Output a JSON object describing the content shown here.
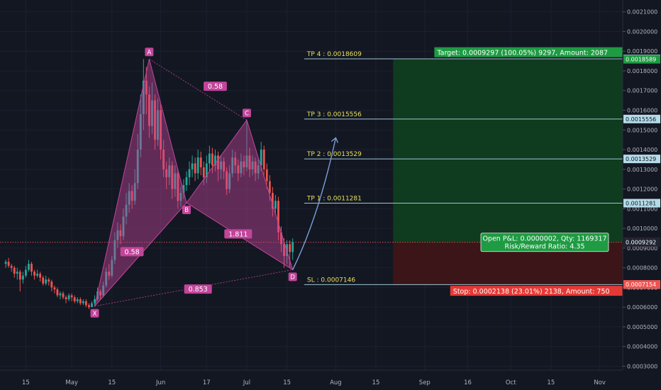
{
  "colors": {
    "background": "#131722",
    "bull": "#26a69a",
    "bear": "#ef5350",
    "pattern": "#c2459a",
    "tp_text": "#e8e05a",
    "profit_zone": "#0f3b1e",
    "loss_zone": "#3b1518",
    "arrow": "#7d9fd8"
  },
  "chart_data": {
    "type": "candlestick",
    "price_scale": {
      "min": 0.00028,
      "max": 0.00216
    },
    "y_ticks": [
      "0.0021000",
      "0.0020000",
      "0.0019000",
      "0.0018000",
      "0.0017000",
      "0.0016000",
      "0.0015000",
      "0.0014000",
      "0.0013000",
      "0.0012000",
      "0.0011000",
      "0.0010000",
      "0.0009000",
      "0.0008000",
      "0.0007000",
      "0.0006000",
      "0.0005000",
      "0.0004000",
      "0.0003000"
    ],
    "y_tick_values": [
      0.0021,
      0.002,
      0.0019,
      0.0018,
      0.0017,
      0.0016,
      0.0015,
      0.0014,
      0.0013,
      0.0012,
      0.0011,
      0.001,
      0.0009,
      0.0008,
      0.0007,
      0.0006,
      0.0005,
      0.0004,
      0.0003
    ],
    "x_ticks": [
      {
        "label": "15",
        "day": -16
      },
      {
        "label": "May",
        "day": 0
      },
      {
        "label": "15",
        "day": 14
      },
      {
        "label": "Jun",
        "day": 31
      },
      {
        "label": "17",
        "day": 47
      },
      {
        "label": "Jul",
        "day": 61
      },
      {
        "label": "15",
        "day": 75
      },
      {
        "label": "Aug",
        "day": 92
      },
      {
        "label": "15",
        "day": 106
      },
      {
        "label": "Sep",
        "day": 123
      },
      {
        "label": "16",
        "day": 138
      },
      {
        "label": "Oct",
        "day": 153
      },
      {
        "label": "15",
        "day": 167
      },
      {
        "label": "Nov",
        "day": 184
      }
    ],
    "x_range_days": [
      -25,
      192
    ],
    "candles": [
      [
        -23,
        0.00082,
        0.00083,
        0.00084,
        0.0008
      ],
      [
        -22,
        0.00083,
        0.00081,
        0.00085,
        0.0008
      ],
      [
        -21,
        0.00081,
        0.0008,
        0.00082,
        0.00078
      ],
      [
        -20,
        0.0008,
        0.00077,
        0.00081,
        0.00075
      ],
      [
        -19,
        0.00077,
        0.00078,
        0.0008,
        0.00074
      ],
      [
        -18,
        0.00078,
        0.00074,
        0.00079,
        0.00068
      ],
      [
        -17,
        0.00074,
        0.00076,
        0.00078,
        0.00072
      ],
      [
        -16,
        0.00076,
        0.00079,
        0.00081,
        0.00075
      ],
      [
        -15,
        0.00079,
        0.00082,
        0.00084,
        0.00078
      ],
      [
        -14,
        0.00082,
        0.00078,
        0.00083,
        0.00076
      ],
      [
        -13,
        0.00078,
        0.00076,
        0.00079,
        0.00074
      ],
      [
        -12,
        0.00076,
        0.00077,
        0.00079,
        0.00075
      ],
      [
        -11,
        0.00077,
        0.00075,
        0.00078,
        0.00073
      ],
      [
        -10,
        0.00075,
        0.00072,
        0.00076,
        0.00071
      ],
      [
        -9,
        0.00072,
        0.00074,
        0.00076,
        0.00071
      ],
      [
        -8,
        0.00074,
        0.00073,
        0.00075,
        0.00071
      ],
      [
        -7,
        0.00073,
        0.0007,
        0.00074,
        0.00068
      ],
      [
        -6,
        0.0007,
        0.00069,
        0.00071,
        0.00067
      ],
      [
        -5,
        0.00069,
        0.00066,
        0.0007,
        0.00065
      ],
      [
        -4,
        0.00066,
        0.00067,
        0.00068,
        0.00064
      ],
      [
        -3,
        0.00067,
        0.00065,
        0.00068,
        0.00064
      ],
      [
        -2,
        0.00065,
        0.00064,
        0.00066,
        0.00062
      ],
      [
        -1,
        0.00064,
        0.00066,
        0.00067,
        0.00063
      ],
      [
        0,
        0.00066,
        0.00065,
        0.00067,
        0.00063
      ],
      [
        1,
        0.00065,
        0.00063,
        0.00066,
        0.00062
      ],
      [
        2,
        0.00063,
        0.00064,
        0.00065,
        0.00062
      ],
      [
        3,
        0.00064,
        0.00062,
        0.00065,
        0.00061
      ],
      [
        4,
        0.00062,
        0.00063,
        0.00064,
        0.00061
      ],
      [
        5,
        0.00063,
        0.00061,
        0.00064,
        0.0006
      ],
      [
        6,
        0.00061,
        0.0006,
        0.00062,
        0.00059
      ],
      [
        7,
        0.0006,
        0.00062,
        0.00063,
        0.0006
      ],
      [
        8,
        0.00062,
        0.00064,
        0.00066,
        0.00061
      ],
      [
        9,
        0.00064,
        0.00068,
        0.0007,
        0.00063
      ],
      [
        10,
        0.00068,
        0.00066,
        0.00069,
        0.00064
      ],
      [
        11,
        0.00066,
        0.00071,
        0.00073,
        0.00065
      ],
      [
        12,
        0.00071,
        0.00078,
        0.0008,
        0.0007
      ],
      [
        13,
        0.00078,
        0.00076,
        0.00082,
        0.00074
      ],
      [
        14,
        0.00076,
        0.00084,
        0.00086,
        0.00075
      ],
      [
        15,
        0.00084,
        0.00094,
        0.00098,
        0.00082
      ],
      [
        16,
        0.00094,
        0.00099,
        0.00103,
        0.0009
      ],
      [
        17,
        0.00099,
        0.00096,
        0.00102,
        0.00092
      ],
      [
        18,
        0.00096,
        0.00106,
        0.0011,
        0.00094
      ],
      [
        19,
        0.00106,
        0.00112,
        0.00118,
        0.00102
      ],
      [
        20,
        0.00112,
        0.00119,
        0.00123,
        0.00108
      ],
      [
        21,
        0.00119,
        0.00114,
        0.00122,
        0.0011
      ],
      [
        22,
        0.00114,
        0.00123,
        0.0013,
        0.00112
      ],
      [
        23,
        0.00123,
        0.0014,
        0.00148,
        0.0012
      ],
      [
        24,
        0.0014,
        0.00158,
        0.00168,
        0.00136
      ],
      [
        25,
        0.00158,
        0.00175,
        0.00186,
        0.0015
      ],
      [
        26,
        0.00175,
        0.00168,
        0.00182,
        0.00158
      ],
      [
        27,
        0.00168,
        0.00152,
        0.00172,
        0.00146
      ],
      [
        28,
        0.00152,
        0.00165,
        0.00174,
        0.00148
      ],
      [
        29,
        0.00165,
        0.00145,
        0.00168,
        0.0014
      ],
      [
        30,
        0.00145,
        0.0016,
        0.00166,
        0.00142
      ],
      [
        31,
        0.0016,
        0.0014,
        0.00163,
        0.00135
      ],
      [
        32,
        0.0014,
        0.0013,
        0.00145,
        0.00126
      ],
      [
        33,
        0.0013,
        0.00126,
        0.00134,
        0.0012
      ],
      [
        34,
        0.00126,
        0.00132,
        0.00136,
        0.00122
      ],
      [
        35,
        0.00132,
        0.0012,
        0.00134,
        0.00115
      ],
      [
        36,
        0.0012,
        0.00128,
        0.00132,
        0.00116
      ],
      [
        37,
        0.00128,
        0.00114,
        0.0013,
        0.0011
      ],
      [
        38,
        0.00114,
        0.00118,
        0.00121,
        0.00111
      ],
      [
        39,
        0.00118,
        0.00122,
        0.00125,
        0.00115
      ],
      [
        40,
        0.00122,
        0.00126,
        0.00129,
        0.00119
      ],
      [
        41,
        0.00126,
        0.0013,
        0.00134,
        0.00122
      ],
      [
        42,
        0.0013,
        0.00133,
        0.00137,
        0.00126
      ],
      [
        43,
        0.00133,
        0.00128,
        0.00136,
        0.00124
      ],
      [
        44,
        0.00128,
        0.00136,
        0.0014,
        0.00125
      ],
      [
        45,
        0.00136,
        0.00131,
        0.00139,
        0.00127
      ],
      [
        46,
        0.00131,
        0.00126,
        0.00134,
        0.00122
      ],
      [
        47,
        0.00126,
        0.00133,
        0.00137,
        0.00123
      ],
      [
        48,
        0.00133,
        0.00138,
        0.00142,
        0.00129
      ],
      [
        49,
        0.00138,
        0.00132,
        0.00141,
        0.00128
      ],
      [
        50,
        0.00132,
        0.00137,
        0.0014,
        0.00129
      ],
      [
        51,
        0.00137,
        0.0013,
        0.00139,
        0.00124
      ],
      [
        52,
        0.0013,
        0.00134,
        0.00137,
        0.00125
      ],
      [
        53,
        0.00134,
        0.00129,
        0.00136,
        0.00125
      ],
      [
        54,
        0.00129,
        0.0012,
        0.00131,
        0.00117
      ],
      [
        55,
        0.0012,
        0.00128,
        0.00132,
        0.00118
      ],
      [
        56,
        0.00128,
        0.00136,
        0.0014,
        0.00126
      ],
      [
        57,
        0.00136,
        0.00132,
        0.00139,
        0.00128
      ],
      [
        58,
        0.00132,
        0.00128,
        0.00135,
        0.00124
      ],
      [
        59,
        0.00128,
        0.00134,
        0.00138,
        0.00126
      ],
      [
        60,
        0.00134,
        0.00131,
        0.00137,
        0.00127
      ],
      [
        61,
        0.00131,
        0.00137,
        0.00155,
        0.00129
      ],
      [
        62,
        0.00137,
        0.0013,
        0.00141,
        0.00126
      ],
      [
        63,
        0.0013,
        0.00134,
        0.00137,
        0.00127
      ],
      [
        64,
        0.00134,
        0.00128,
        0.00136,
        0.00124
      ],
      [
        65,
        0.00128,
        0.00132,
        0.00135,
        0.00125
      ],
      [
        66,
        0.00132,
        0.0014,
        0.00144,
        0.00129
      ],
      [
        67,
        0.0014,
        0.0013,
        0.00142,
        0.00126
      ],
      [
        68,
        0.0013,
        0.00124,
        0.00133,
        0.0012
      ],
      [
        69,
        0.00124,
        0.00118,
        0.00127,
        0.00114
      ],
      [
        70,
        0.00118,
        0.0011,
        0.00121,
        0.00106
      ],
      [
        71,
        0.0011,
        0.00114,
        0.00117,
        0.00107
      ],
      [
        72,
        0.00114,
        0.00098,
        0.00116,
        0.00094
      ],
      [
        73,
        0.00098,
        0.00092,
        0.00101,
        0.00088
      ],
      [
        74,
        0.00092,
        0.00086,
        0.00095,
        0.0008
      ],
      [
        75,
        0.00086,
        0.00092,
        0.00094,
        0.00082
      ],
      [
        76,
        0.00092,
        0.00088,
        0.00094,
        0.0008
      ],
      [
        77,
        0.00088,
        0.00093,
        0.00095,
        0.00084
      ]
    ],
    "pattern_points": [
      {
        "label": "X",
        "day": 8,
        "price": 0.000605
      },
      {
        "label": "A",
        "day": 27,
        "price": 0.00186
      },
      {
        "label": "B",
        "day": 40,
        "price": 0.00113
      },
      {
        "label": "C",
        "day": 61,
        "price": 0.00155
      },
      {
        "label": "D",
        "day": 77,
        "price": 0.00079
      }
    ],
    "ratios": [
      {
        "label": "0.58",
        "day": 50,
        "price": 0.00172
      },
      {
        "label": "0.58",
        "day": 21,
        "price": 0.00088
      },
      {
        "label": "1.811",
        "day": 58,
        "price": 0.00097
      },
      {
        "label": "0.853",
        "day": 44,
        "price": 0.00069
      }
    ],
    "projection_arrow": {
      "from_day": 77,
      "from_price": 0.00079,
      "to_day": 92,
      "to_price": 0.00146
    },
    "levels": [
      {
        "label": "TP 4 : 0.0018609",
        "price": 0.0018609,
        "badge": "0.0018609"
      },
      {
        "label": "TP 3 : 0.0015556",
        "price": 0.0015556,
        "badge": "0.0015556"
      },
      {
        "label": "TP 2 : 0.0013529",
        "price": 0.0013529,
        "badge": "0.0013529"
      },
      {
        "label": "TP 1 : 0.0011281",
        "price": 0.0011281,
        "badge": "0.0011281"
      },
      {
        "label": "SL : 0.0007146",
        "price": 0.0007146,
        "badge": "0.0007146"
      }
    ],
    "extra_badges": [
      {
        "text": "0.0018589",
        "price": 0.0018589,
        "color": "#1e9b43"
      },
      {
        "text": "0.0009294",
        "price": 0.0009294,
        "color": "#ef5350"
      },
      {
        "text": "0.0009292",
        "price": 0.0009292,
        "color": "#1f2432"
      },
      {
        "text": "0.0007154",
        "price": 0.0007154,
        "color": "#ef5350"
      }
    ],
    "current_price": 0.0009294,
    "position": {
      "entry_price": 0.0009292,
      "target_price": 0.0018589,
      "stop_price": 0.0007154,
      "start_day": 112,
      "end_day": 192
    },
    "info_boxes": {
      "target": "Target: 0.0009297 (100.05%) 9297, Amount: 2087",
      "stop": "Stop: 0.0002138 (23.01%) 2138, Amount: 750",
      "open_pnl": "Open P&L: 0.0000002, Qty: 1169317",
      "risk_reward": "Risk/Reward Ratio: 4.35"
    }
  }
}
